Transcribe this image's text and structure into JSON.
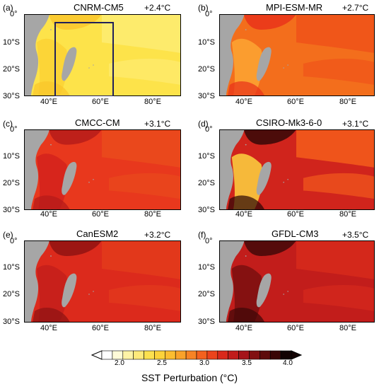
{
  "panels": [
    {
      "label": "(a)",
      "model": "CNRM-CM5",
      "delta": "+2.4°C",
      "colors": {
        "base": "#fde34a",
        "east": "#fdeb70",
        "coast": "#fbd234",
        "hot": "#fac42a"
      }
    },
    {
      "label": "(b)",
      "model": "MPI-ESM-MR",
      "delta": "+2.7°C",
      "colors": {
        "base": "#f36e1c",
        "east": "#f0531a",
        "coast": "#fba632",
        "hot": "#e8301a"
      }
    },
    {
      "label": "(c)",
      "model": "CMCC-CM",
      "delta": "+3.1°C",
      "colors": {
        "base": "#e8381d",
        "east": "#ea4a1d",
        "coast": "#d4221c",
        "hot": "#b31a1a"
      }
    },
    {
      "label": "(d)",
      "model": "CSIRO-Mk3-6-0",
      "delta": "+3.1°C",
      "colors": {
        "base": "#d0241c",
        "east": "#f25a1c",
        "coast": "#fdd440",
        "hot": "#2a0606"
      }
    },
    {
      "label": "(e)",
      "model": "CanESM2",
      "delta": "+3.2°C",
      "colors": {
        "base": "#dc2a1c",
        "east": "#e23a1c",
        "coast": "#c41e1b",
        "hot": "#8c1212"
      }
    },
    {
      "label": "(f)",
      "model": "GFDL-CM3",
      "delta": "+3.5°C",
      "colors": {
        "base": "#c21d1b",
        "east": "#d62a1c",
        "coast": "#7a0f0f",
        "hot": "#3a0707"
      }
    }
  ],
  "axes": {
    "y_ticks": [
      "0°",
      "10°S",
      "20°S",
      "30°S"
    ],
    "x_ticks": [
      "40°E",
      "60°E",
      "80°E"
    ]
  },
  "colorbar": {
    "title": "SST Perturbation (°C)",
    "tick_labels": [
      "2.0",
      "2.5",
      "3.0",
      "3.5",
      "4.0"
    ],
    "colors": [
      "#ffffff",
      "#fffbd8",
      "#fff3a6",
      "#ffe97a",
      "#fde04f",
      "#fcd23a",
      "#fbbd30",
      "#f9a22a",
      "#f78324",
      "#f4611e",
      "#ec431c",
      "#d9281b",
      "#c11c1b",
      "#a5141a",
      "#821012",
      "#5e0b0b",
      "#380606",
      "#120202"
    ]
  },
  "colors": {
    "land": "#a6a6a6",
    "box": "#20205a"
  }
}
